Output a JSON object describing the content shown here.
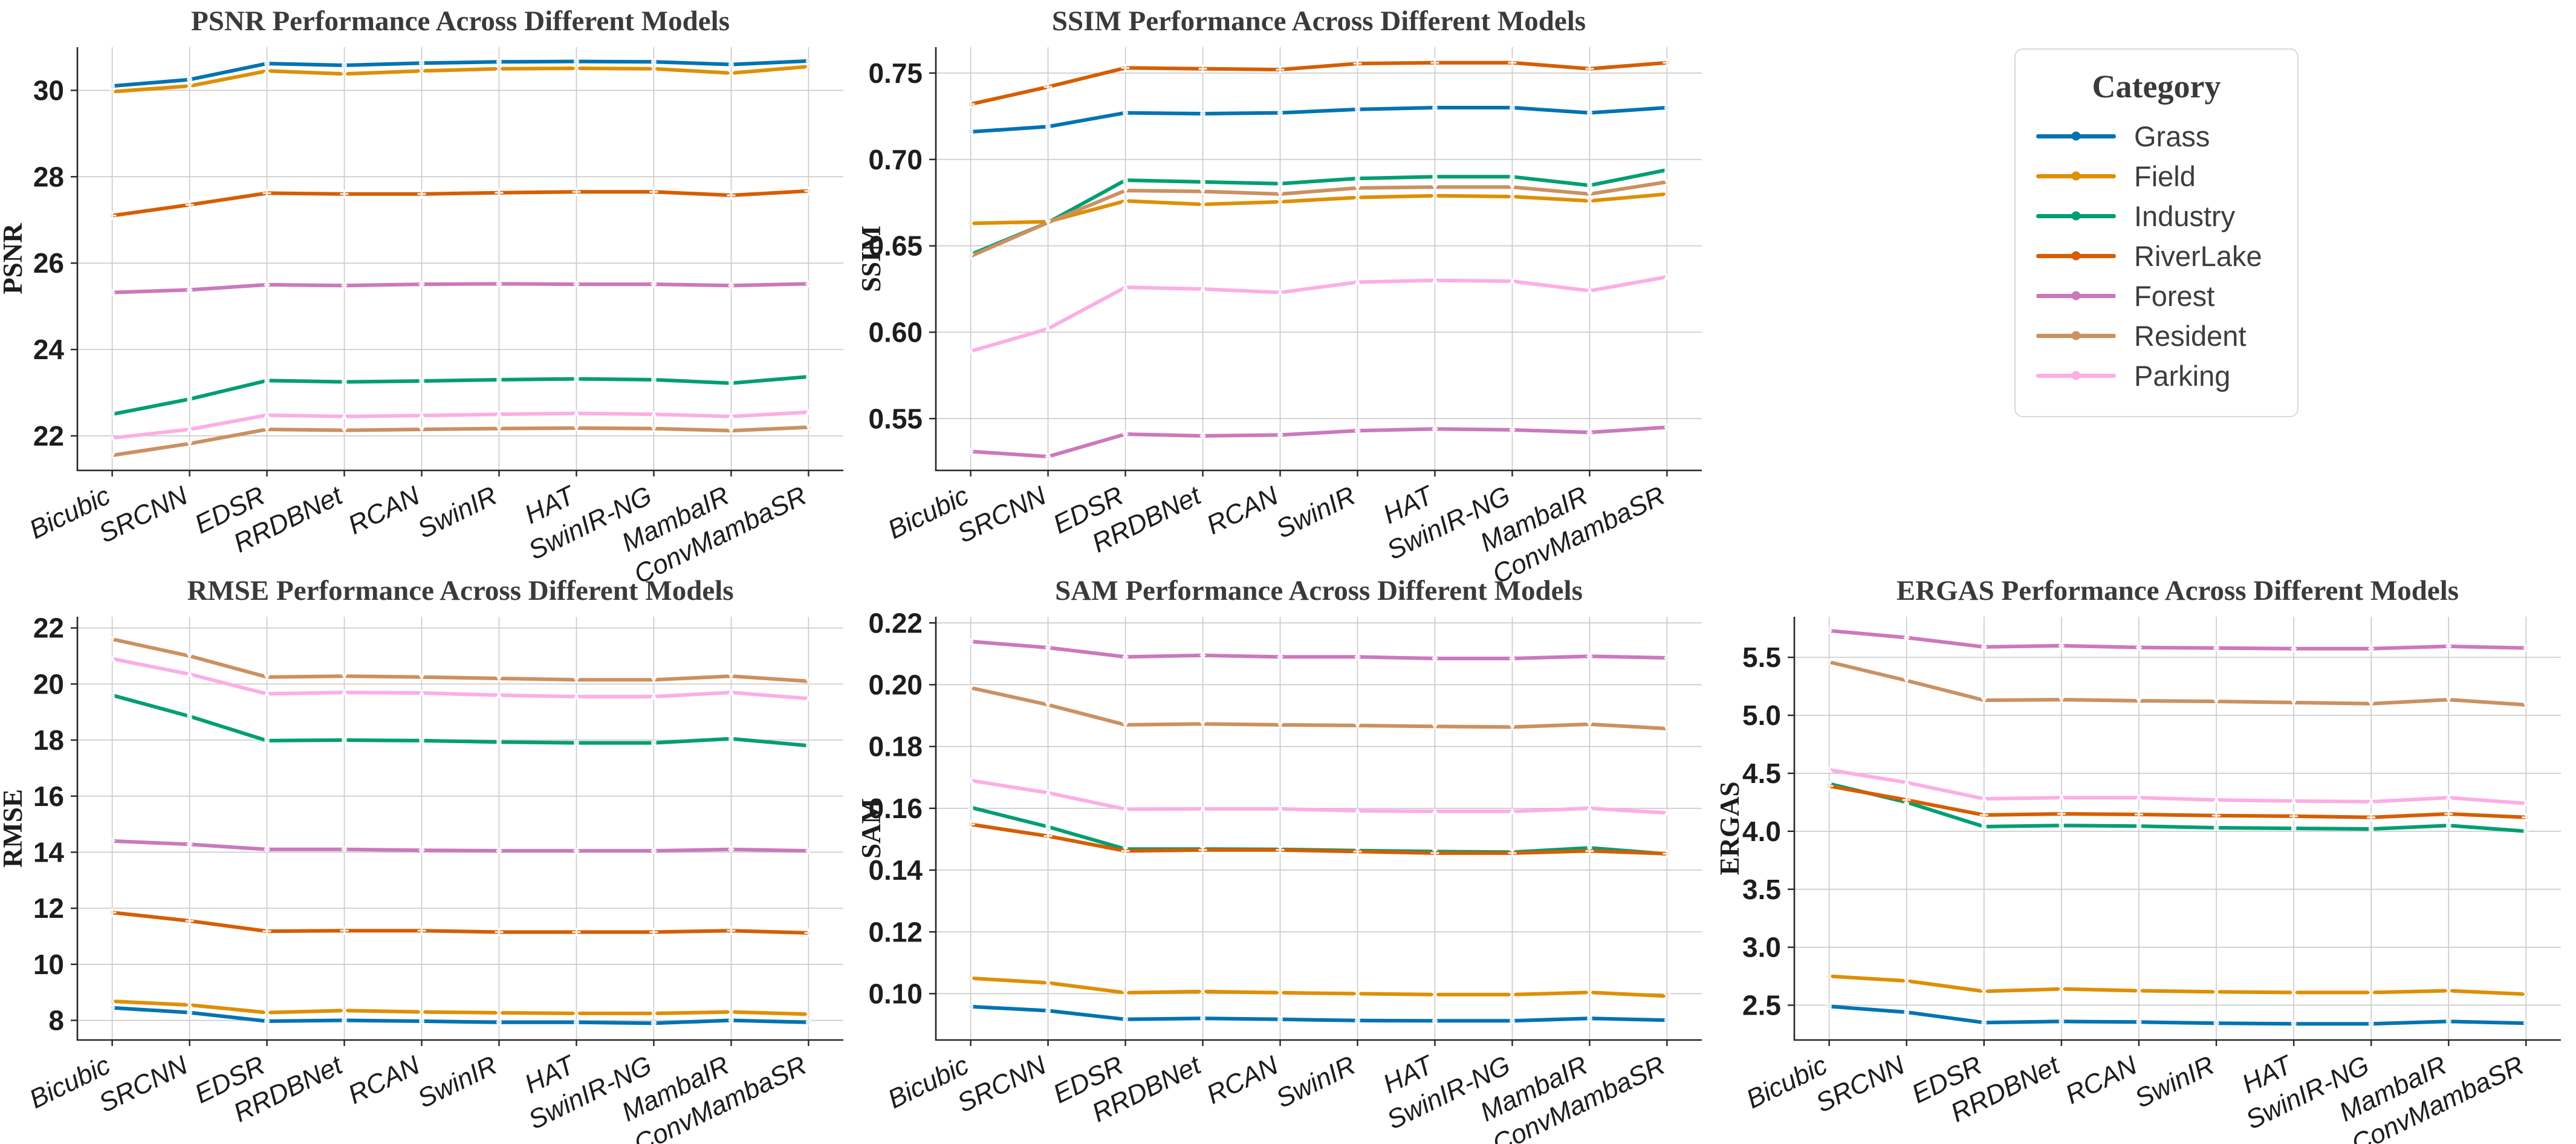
{
  "figure": {
    "background": "#ffffff",
    "grid_color": "#c9c9c9",
    "spine_color": "#262626",
    "title_color": "#3a3a3a",
    "tick_color": "#1d1d1d"
  },
  "legend": {
    "title": "Category",
    "entries": [
      {
        "label": "Grass",
        "color": "#0173b2",
        "marker": "o"
      },
      {
        "label": "Field",
        "color": "#de8f05",
        "marker": "X"
      },
      {
        "label": "Industry",
        "color": "#029e73",
        "marker": "s"
      },
      {
        "label": "RiverLake",
        "color": "#d55e00",
        "marker": "P"
      },
      {
        "label": "Forest",
        "color": "#cc78bc",
        "marker": "D"
      },
      {
        "label": "Resident",
        "color": "#ca9161",
        "marker": "v"
      },
      {
        "label": "Parking",
        "color": "#fbafe4",
        "marker": "^"
      }
    ]
  },
  "chart_data": [
    {
      "type": "line",
      "title": "PSNR Performance Across Different Models",
      "ylabel": "PSNR",
      "ylim": [
        21.2,
        31.0
      ],
      "yticks": [
        22,
        24,
        26,
        28,
        30
      ],
      "ytick_labels": [
        "22",
        "24",
        "26",
        "28",
        "30"
      ],
      "categories": [
        "Bicubic",
        "SRCNN",
        "EDSR",
        "RRDBNet",
        "RCAN",
        "SwinIR",
        "HAT",
        "SwinIR-NG",
        "MambaIR",
        "ConvMambaSR"
      ],
      "series": [
        {
          "name": "Grass",
          "values": [
            30.1,
            30.25,
            30.62,
            30.58,
            30.63,
            30.66,
            30.67,
            30.66,
            30.6,
            30.68
          ]
        },
        {
          "name": "Field",
          "values": [
            29.97,
            30.1,
            30.45,
            30.38,
            30.45,
            30.5,
            30.51,
            30.5,
            30.4,
            30.55
          ]
        },
        {
          "name": "Industry",
          "values": [
            22.5,
            22.85,
            23.28,
            23.25,
            23.27,
            23.3,
            23.32,
            23.3,
            23.22,
            23.37
          ]
        },
        {
          "name": "RiverLake",
          "values": [
            27.1,
            27.35,
            27.62,
            27.6,
            27.6,
            27.63,
            27.65,
            27.65,
            27.57,
            27.67
          ]
        },
        {
          "name": "Forest",
          "values": [
            25.32,
            25.38,
            25.5,
            25.48,
            25.51,
            25.52,
            25.51,
            25.51,
            25.48,
            25.52
          ]
        },
        {
          "name": "Resident",
          "values": [
            21.55,
            21.82,
            22.15,
            22.13,
            22.15,
            22.17,
            22.18,
            22.17,
            22.12,
            22.2
          ]
        },
        {
          "name": "Parking",
          "values": [
            21.95,
            22.15,
            22.48,
            22.45,
            22.47,
            22.5,
            22.52,
            22.5,
            22.45,
            22.55
          ]
        }
      ]
    },
    {
      "type": "line",
      "title": "SSIM Performance Across Different Models",
      "ylabel": "SSIM",
      "ylim": [
        0.52,
        0.765
      ],
      "yticks": [
        0.55,
        0.6,
        0.65,
        0.7,
        0.75
      ],
      "ytick_labels": [
        "0.55",
        "0.60",
        "0.65",
        "0.70",
        "0.75"
      ],
      "categories": [
        "Bicubic",
        "SRCNN",
        "EDSR",
        "RRDBNet",
        "RCAN",
        "SwinIR",
        "HAT",
        "SwinIR-NG",
        "MambaIR",
        "ConvMambaSR"
      ],
      "series": [
        {
          "name": "Grass",
          "values": [
            0.716,
            0.719,
            0.727,
            0.7265,
            0.727,
            0.729,
            0.73,
            0.73,
            0.727,
            0.73
          ]
        },
        {
          "name": "Field",
          "values": [
            0.663,
            0.664,
            0.676,
            0.674,
            0.6755,
            0.678,
            0.679,
            0.6785,
            0.676,
            0.68
          ]
        },
        {
          "name": "Industry",
          "values": [
            0.645,
            0.6635,
            0.688,
            0.687,
            0.686,
            0.689,
            0.69,
            0.69,
            0.685,
            0.694
          ]
        },
        {
          "name": "RiverLake",
          "values": [
            0.732,
            0.742,
            0.753,
            0.7525,
            0.752,
            0.7555,
            0.756,
            0.756,
            0.7525,
            0.756
          ]
        },
        {
          "name": "Forest",
          "values": [
            0.531,
            0.528,
            0.541,
            0.54,
            0.5405,
            0.543,
            0.544,
            0.5435,
            0.542,
            0.545
          ]
        },
        {
          "name": "Resident",
          "values": [
            0.644,
            0.6635,
            0.682,
            0.6815,
            0.68,
            0.6835,
            0.684,
            0.684,
            0.68,
            0.687
          ]
        },
        {
          "name": "Parking",
          "values": [
            0.589,
            0.602,
            0.626,
            0.625,
            0.623,
            0.629,
            0.63,
            0.6295,
            0.624,
            0.632
          ]
        }
      ]
    },
    {
      "type": "line",
      "title": "RMSE Performance Across Different Models",
      "ylabel": "RMSE",
      "ylim": [
        7.3,
        22.4
      ],
      "yticks": [
        8,
        10,
        12,
        14,
        16,
        18,
        20,
        22
      ],
      "ytick_labels": [
        "8",
        "10",
        "12",
        "14",
        "16",
        "18",
        "20",
        "22"
      ],
      "categories": [
        "Bicubic",
        "SRCNN",
        "EDSR",
        "RRDBNet",
        "RCAN",
        "SwinIR",
        "HAT",
        "SwinIR-NG",
        "MambaIR",
        "ConvMambaSR"
      ],
      "series": [
        {
          "name": "Grass",
          "values": [
            8.45,
            8.28,
            7.97,
            8.0,
            7.97,
            7.93,
            7.93,
            7.9,
            8.0,
            7.93
          ]
        },
        {
          "name": "Field",
          "values": [
            8.68,
            8.55,
            8.28,
            8.35,
            8.3,
            8.27,
            8.25,
            8.25,
            8.3,
            8.22
          ]
        },
        {
          "name": "Industry",
          "values": [
            19.6,
            18.85,
            17.98,
            18.0,
            17.98,
            17.93,
            17.9,
            17.9,
            18.05,
            17.8
          ]
        },
        {
          "name": "RiverLake",
          "values": [
            11.85,
            11.55,
            11.18,
            11.2,
            11.2,
            11.15,
            11.15,
            11.15,
            11.2,
            11.12
          ]
        },
        {
          "name": "Forest",
          "values": [
            14.4,
            14.28,
            14.1,
            14.1,
            14.07,
            14.05,
            14.05,
            14.05,
            14.1,
            14.05
          ]
        },
        {
          "name": "Resident",
          "values": [
            21.6,
            21.0,
            20.25,
            20.28,
            20.25,
            20.2,
            20.15,
            20.15,
            20.28,
            20.1
          ]
        },
        {
          "name": "Parking",
          "values": [
            20.9,
            20.35,
            19.65,
            19.7,
            19.68,
            19.6,
            19.55,
            19.55,
            19.7,
            19.48
          ]
        }
      ]
    },
    {
      "type": "line",
      "title": "SAM Performance Across Different Models",
      "ylabel": "SAM",
      "ylim": [
        0.085,
        0.222
      ],
      "yticks": [
        0.1,
        0.12,
        0.14,
        0.16,
        0.18,
        0.2,
        0.22
      ],
      "ytick_labels": [
        "0.10",
        "0.12",
        "0.14",
        "0.16",
        "0.18",
        "0.20",
        "0.22"
      ],
      "categories": [
        "Bicubic",
        "SRCNN",
        "EDSR",
        "RRDBNet",
        "RCAN",
        "SwinIR",
        "HAT",
        "SwinIR-NG",
        "MambaIR",
        "ConvMambaSR"
      ],
      "series": [
        {
          "name": "Grass",
          "values": [
            0.0958,
            0.0945,
            0.0917,
            0.092,
            0.0917,
            0.0913,
            0.0912,
            0.0912,
            0.092,
            0.0914
          ]
        },
        {
          "name": "Field",
          "values": [
            0.105,
            0.1035,
            0.1003,
            0.1007,
            0.1003,
            0.1,
            0.0997,
            0.0997,
            0.1004,
            0.0992
          ]
        },
        {
          "name": "Industry",
          "values": [
            0.1603,
            0.154,
            0.1468,
            0.1468,
            0.1467,
            0.1463,
            0.146,
            0.1458,
            0.1472,
            0.1452
          ]
        },
        {
          "name": "RiverLake",
          "values": [
            0.1548,
            0.151,
            0.1462,
            0.1465,
            0.1465,
            0.146,
            0.1455,
            0.1455,
            0.1462,
            0.1453
          ]
        },
        {
          "name": "Forest",
          "values": [
            0.214,
            0.212,
            0.209,
            0.2095,
            0.209,
            0.209,
            0.2085,
            0.2085,
            0.2092,
            0.2087
          ]
        },
        {
          "name": "Resident",
          "values": [
            0.199,
            0.1935,
            0.187,
            0.1873,
            0.187,
            0.1868,
            0.1865,
            0.1863,
            0.1872,
            0.1858
          ]
        },
        {
          "name": "Parking",
          "values": [
            0.169,
            0.165,
            0.1597,
            0.1598,
            0.1598,
            0.1592,
            0.159,
            0.159,
            0.16,
            0.1585
          ]
        }
      ]
    },
    {
      "type": "line",
      "title": "ERGAS Performance Across Different Models",
      "ylabel": "ERGAS",
      "ylim": [
        2.2,
        5.85
      ],
      "yticks": [
        2.5,
        3.0,
        3.5,
        4.0,
        4.5,
        5.0,
        5.5
      ],
      "ytick_labels": [
        "2.5",
        "3.0",
        "3.5",
        "4.0",
        "4.5",
        "5.0",
        "5.5"
      ],
      "categories": [
        "Bicubic",
        "SRCNN",
        "EDSR",
        "RRDBNet",
        "RCAN",
        "SwinIR",
        "HAT",
        "SwinIR-NG",
        "MambaIR",
        "ConvMambaSR"
      ],
      "series": [
        {
          "name": "Grass",
          "values": [
            2.49,
            2.44,
            2.35,
            2.36,
            2.355,
            2.345,
            2.34,
            2.34,
            2.36,
            2.345
          ]
        },
        {
          "name": "Field",
          "values": [
            2.75,
            2.71,
            2.62,
            2.64,
            2.625,
            2.615,
            2.61,
            2.61,
            2.625,
            2.595
          ]
        },
        {
          "name": "Industry",
          "values": [
            4.41,
            4.25,
            4.04,
            4.05,
            4.045,
            4.03,
            4.025,
            4.02,
            4.05,
            4.0
          ]
        },
        {
          "name": "RiverLake",
          "values": [
            4.39,
            4.27,
            4.14,
            4.15,
            4.145,
            4.135,
            4.13,
            4.12,
            4.15,
            4.12
          ]
        },
        {
          "name": "Forest",
          "values": [
            5.73,
            5.67,
            5.59,
            5.6,
            5.585,
            5.58,
            5.575,
            5.575,
            5.595,
            5.58
          ]
        },
        {
          "name": "Resident",
          "values": [
            5.46,
            5.3,
            5.13,
            5.135,
            5.125,
            5.12,
            5.11,
            5.1,
            5.135,
            5.09
          ]
        },
        {
          "name": "Parking",
          "values": [
            4.53,
            4.42,
            4.28,
            4.29,
            4.29,
            4.27,
            4.26,
            4.255,
            4.29,
            4.24
          ]
        }
      ]
    }
  ]
}
